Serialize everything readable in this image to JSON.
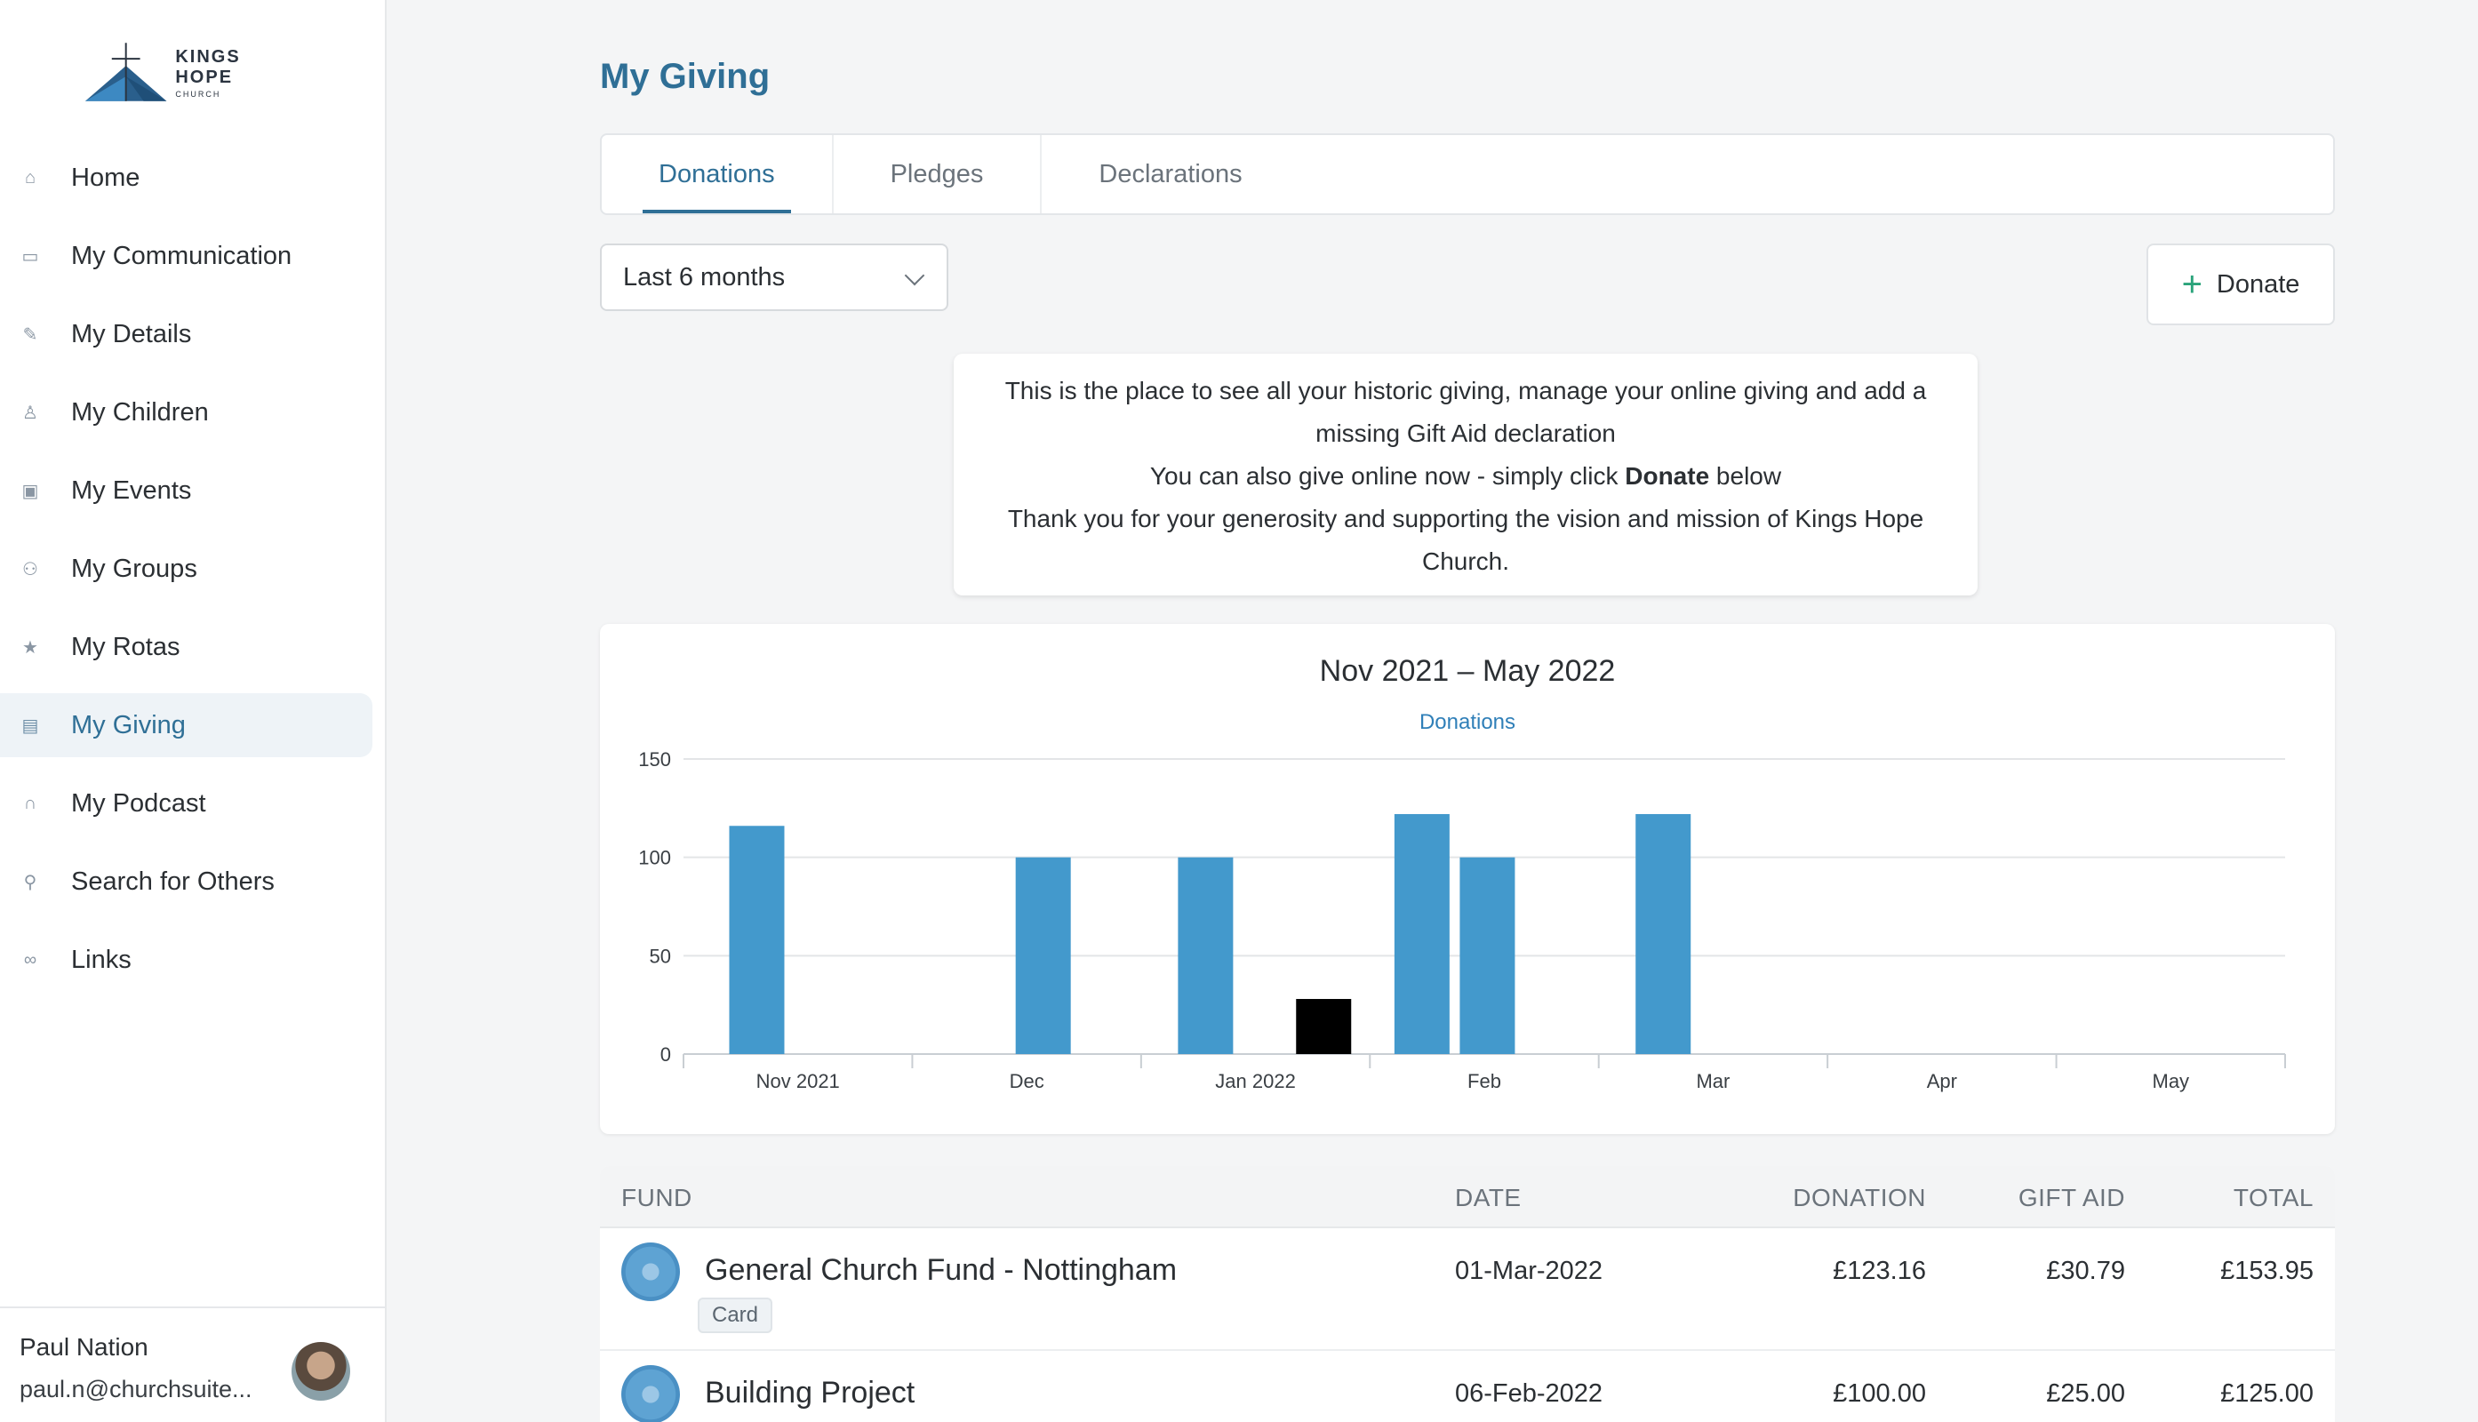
{
  "logo": {
    "line1": "KINGS HOPE",
    "line2": "CHURCH"
  },
  "nav": {
    "items": [
      {
        "label": "Home",
        "icon": "home-icon"
      },
      {
        "label": "My Communication",
        "icon": "chat-icon"
      },
      {
        "label": "My Details",
        "icon": "pencil-icon"
      },
      {
        "label": "My Children",
        "icon": "shirt-icon"
      },
      {
        "label": "My Events",
        "icon": "calendar-icon"
      },
      {
        "label": "My Groups",
        "icon": "group-icon"
      },
      {
        "label": "My Rotas",
        "icon": "star-icon"
      },
      {
        "label": "My Giving",
        "icon": "card-icon"
      },
      {
        "label": "My Podcast",
        "icon": "headphones-icon"
      },
      {
        "label": "Search for Others",
        "icon": "person-search-icon"
      },
      {
        "label": "Links",
        "icon": "link-icon"
      }
    ],
    "active_index": 7
  },
  "user": {
    "name": "Paul Nation",
    "email": "paul.n@churchsuite..."
  },
  "page": {
    "title": "My Giving"
  },
  "tabs": [
    {
      "label": "Donations",
      "active": true
    },
    {
      "label": "Pledges",
      "active": false
    },
    {
      "label": "Declarations",
      "active": false
    }
  ],
  "filter": {
    "period": "Last 6 months"
  },
  "donate_button": {
    "label": "Donate"
  },
  "info": {
    "line1": "This is the place to see all your historic giving, manage your online giving and add a",
    "line2": "missing Gift Aid declaration",
    "line3_pre": "You can also give online now - simply click ",
    "line3_bold": "Donate",
    "line3_post": " below",
    "line4": "Thank you for your generosity and supporting the vision and mission of Kings Hope",
    "line5": "Church."
  },
  "chart_data": {
    "type": "bar",
    "title": "Nov 2021 – May 2022",
    "legend": "Donations",
    "categories": [
      "Nov 2021",
      "Dec",
      "Jan 2022",
      "Feb",
      "Mar",
      "Apr",
      "May"
    ],
    "yticks": [
      0,
      50,
      100,
      150
    ],
    "ylim": [
      0,
      150
    ],
    "bars": [
      {
        "date": "2021-11-07",
        "value": 116,
        "color": "#4399cc"
      },
      {
        "date": "2021-12-15",
        "value": 100,
        "color": "#4399cc"
      },
      {
        "date": "2022-01-06",
        "value": 100,
        "color": "#4399cc"
      },
      {
        "date": "2022-01-22",
        "value": 28,
        "color": "#000000"
      },
      {
        "date": "2022-02-04",
        "value": 122,
        "color": "#4399cc"
      },
      {
        "date": "2022-02-12",
        "value": 100,
        "color": "#4399cc"
      },
      {
        "date": "2022-03-06",
        "value": 122,
        "color": "#4399cc"
      }
    ],
    "grid": true
  },
  "table": {
    "headers": {
      "fund": "FUND",
      "date": "DATE",
      "donation": "DONATION",
      "gift_aid": "GIFT AID",
      "total": "TOTAL"
    },
    "rows": [
      {
        "fund": "General Church Fund - Nottingham",
        "badge": "Card",
        "date": "01-Mar-2022",
        "donation": "£123.16",
        "gift_aid": "£30.79",
        "total": "£153.95"
      },
      {
        "fund": "Building Project",
        "badge": "",
        "date": "06-Feb-2022",
        "donation": "£100.00",
        "gift_aid": "£25.00",
        "total": "£125.00"
      }
    ]
  },
  "colors": {
    "accent": "#2f6f96",
    "bar": "#4399cc",
    "plus": "#2aa37a"
  }
}
